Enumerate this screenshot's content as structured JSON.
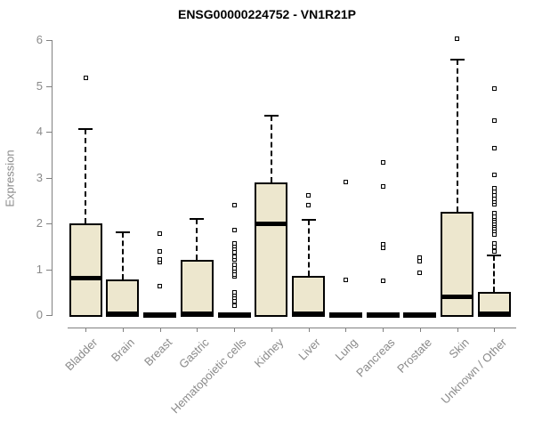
{
  "title": "ENSG00000224752 - VN1R21P",
  "colors": {
    "box_fill": "#EDE7CE",
    "box_border": "#000000",
    "median": "#000000",
    "axis": "#808080",
    "tick_label": "#8a8a8a",
    "title": "#000000"
  },
  "chart_data": {
    "type": "boxplot",
    "title": "ENSG00000224752 - VN1R21P",
    "xlabel": "",
    "ylabel": "Expression",
    "ylim": [
      0,
      6
    ],
    "yticks": [
      0,
      1,
      2,
      3,
      4,
      5,
      6
    ],
    "grid": false,
    "legend": false,
    "categories": [
      "Bladder",
      "Brain",
      "Breast",
      "Gastric",
      "Hematopoietic cells",
      "Kidney",
      "Liver",
      "Lung",
      "Pancreas",
      "Prostate",
      "Skin",
      "Unknown / Other"
    ],
    "boxes": [
      {
        "label": "Bladder",
        "q1": 0,
        "median": 0.82,
        "q3": 2.0,
        "whisker_low": 0,
        "whisker_high": 4.05,
        "outliers": [
          5.17
        ]
      },
      {
        "label": "Brain",
        "q1": 0,
        "median": 0.03,
        "q3": 0.77,
        "whisker_low": 0,
        "whisker_high": 1.8,
        "outliers": []
      },
      {
        "label": "Breast",
        "q1": 0,
        "median": 0,
        "q3": 0,
        "whisker_low": 0,
        "whisker_high": 0,
        "outliers": [
          0.64,
          1.16,
          1.22,
          1.39,
          1.78
        ]
      },
      {
        "label": "Gastric",
        "q1": 0,
        "median": 0.03,
        "q3": 1.2,
        "whisker_low": 0,
        "whisker_high": 2.1,
        "outliers": []
      },
      {
        "label": "Hematopoietic cells",
        "q1": 0,
        "median": 0,
        "q3": 0,
        "whisker_low": 0,
        "whisker_high": 0,
        "outliers": [
          0.21,
          0.31,
          0.37,
          0.44,
          0.5,
          0.84,
          0.89,
          0.96,
          1.02,
          1.1,
          1.21,
          1.28,
          1.36,
          1.44,
          1.51,
          1.57,
          1.85,
          2.4
        ]
      },
      {
        "label": "Kidney",
        "q1": 0,
        "median": 2.0,
        "q3": 2.9,
        "whisker_low": 0,
        "whisker_high": 4.35,
        "outliers": []
      },
      {
        "label": "Liver",
        "q1": 0,
        "median": 0.03,
        "q3": 0.86,
        "whisker_low": 0,
        "whisker_high": 2.08,
        "outliers": [
          2.4,
          2.61
        ]
      },
      {
        "label": "Lung",
        "q1": 0,
        "median": 0,
        "q3": 0,
        "whisker_low": 0,
        "whisker_high": 0,
        "outliers": [
          0.76,
          2.91
        ]
      },
      {
        "label": "Pancreas",
        "q1": 0,
        "median": 0,
        "q3": 0,
        "whisker_low": 0,
        "whisker_high": 0,
        "outliers": [
          0.74,
          1.47,
          1.54,
          2.81,
          3.33
        ]
      },
      {
        "label": "Prostate",
        "q1": 0,
        "median": 0,
        "q3": 0,
        "whisker_low": 0,
        "whisker_high": 0,
        "outliers": [
          0.92,
          1.18,
          1.26
        ]
      },
      {
        "label": "Skin",
        "q1": 0,
        "median": 0.41,
        "q3": 2.25,
        "whisker_low": 0,
        "whisker_high": 5.58,
        "outliers": [
          6.03
        ]
      },
      {
        "label": "Unknown / Other",
        "q1": 0,
        "median": 0.04,
        "q3": 0.5,
        "whisker_low": 0,
        "whisker_high": 1.3,
        "outliers": [
          1.38,
          1.49,
          1.57,
          1.75,
          1.83,
          1.9,
          1.95,
          2.0,
          2.05,
          2.1,
          2.15,
          2.22,
          2.41,
          2.47,
          2.54,
          2.62,
          2.69,
          2.77,
          3.06,
          3.64,
          4.24,
          4.95
        ]
      }
    ]
  }
}
